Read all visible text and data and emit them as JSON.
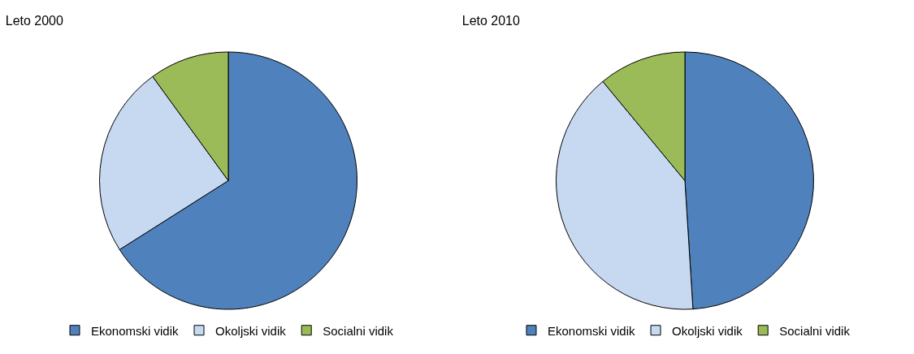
{
  "chart_data": [
    {
      "type": "pie",
      "title": "Leto 2000",
      "categories": [
        "Ekonomski vidik",
        "Okoljski vidik",
        "Socialni vidik"
      ],
      "values": [
        66,
        24,
        10
      ],
      "colors": [
        "#4f81bd",
        "#c6d9f1",
        "#9bbb59"
      ],
      "legend": "bottom"
    },
    {
      "type": "pie",
      "title": "Leto 2010",
      "categories": [
        "Ekonomski vidik",
        "Okoljski vidik",
        "Socialni vidik"
      ],
      "values": [
        49,
        40,
        11
      ],
      "colors": [
        "#4f81bd",
        "#c6d9f1",
        "#9bbb59"
      ],
      "legend": "bottom"
    }
  ]
}
